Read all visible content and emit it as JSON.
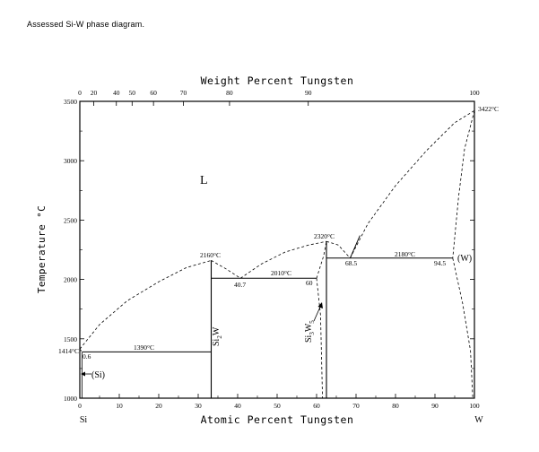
{
  "caption": "Assessed Si-W  phase diagram.",
  "axes": {
    "top_title": "Weight Percent Tungsten",
    "bottom_title": "Atomic Percent Tungsten",
    "left_title": "Temperature °C",
    "left_element": "Si",
    "right_element": "W",
    "x_ticks": [
      "0",
      "10",
      "20",
      "30",
      "40",
      "50",
      "60",
      "70",
      "80",
      "90",
      "100"
    ],
    "top_ticks": [
      {
        "label": "0",
        "at": 0
      },
      {
        "label": "20",
        "at": 3.52
      },
      {
        "label": "40",
        "at": 9.26
      },
      {
        "label": "50",
        "at": 13.25
      },
      {
        "label": "60",
        "at": 18.67
      },
      {
        "label": "70",
        "at": 26.26
      },
      {
        "label": "80",
        "at": 37.94
      },
      {
        "label": "90",
        "at": 57.89
      },
      {
        "label": "100",
        "at": 100
      }
    ],
    "y_ticks": [
      "1000",
      "1500",
      "2000",
      "2500",
      "3000",
      "3500"
    ],
    "y_range": [
      1000,
      3500
    ],
    "x_range": [
      0,
      100
    ]
  },
  "labels": {
    "liquid": "L",
    "si_phase": "(Si)",
    "w_phase": "(W)",
    "si2w_base": "Si",
    "si2w_sub": "2",
    "si2w_w": "W",
    "si3w5_base": "Si",
    "si3w5_sub1": "3",
    "si3w5_w": "W",
    "si3w5_sub2": "5"
  },
  "annotations": {
    "si_melt": "1414°C",
    "w_melt": "3422°C",
    "eutectic_si": "1390°C",
    "eutectic_si_comp": "0.6",
    "si2w_melt": "2160°C",
    "eutectic_mid": "2010°C",
    "eutectic_mid_left": "40.7",
    "eutectic_mid_right": "60",
    "si3w5_melt": "2320°C",
    "eutectic_w": "2180°C",
    "eutectic_w_left": "68.5",
    "eutectic_w_right": "94.5"
  },
  "chart_data": {
    "type": "phase_diagram",
    "x_unit": "at.% W",
    "y_unit": "°C",
    "xlim": [
      0,
      100
    ],
    "ylim": [
      1000,
      3500
    ],
    "points": [
      {
        "name": "Si melting",
        "x": 0,
        "y": 1414
      },
      {
        "name": "Si-rich eutectic",
        "x": 0.6,
        "y": 1390
      },
      {
        "name": "Si2W congruent melting",
        "x": 33.3,
        "y": 2160
      },
      {
        "name": "Si2W-Si3W5 eutectic",
        "x": 40.7,
        "y": 2010
      },
      {
        "name": "Si3W5 congruent melting",
        "x": 62.5,
        "y": 2320
      },
      {
        "name": "Si3W5-(W) eutectic",
        "x": 68.5,
        "y": 2180
      },
      {
        "name": "(W) solubility at eutectic",
        "x": 94.5,
        "y": 2180
      },
      {
        "name": "W melting",
        "x": 100,
        "y": 3422
      }
    ],
    "isotherms": [
      {
        "T": 1390,
        "from": 0.6,
        "to": 33.3
      },
      {
        "T": 2010,
        "from": 33.3,
        "to": 60
      },
      {
        "T": 2180,
        "from": 62.5,
        "to": 94.5
      }
    ]
  }
}
